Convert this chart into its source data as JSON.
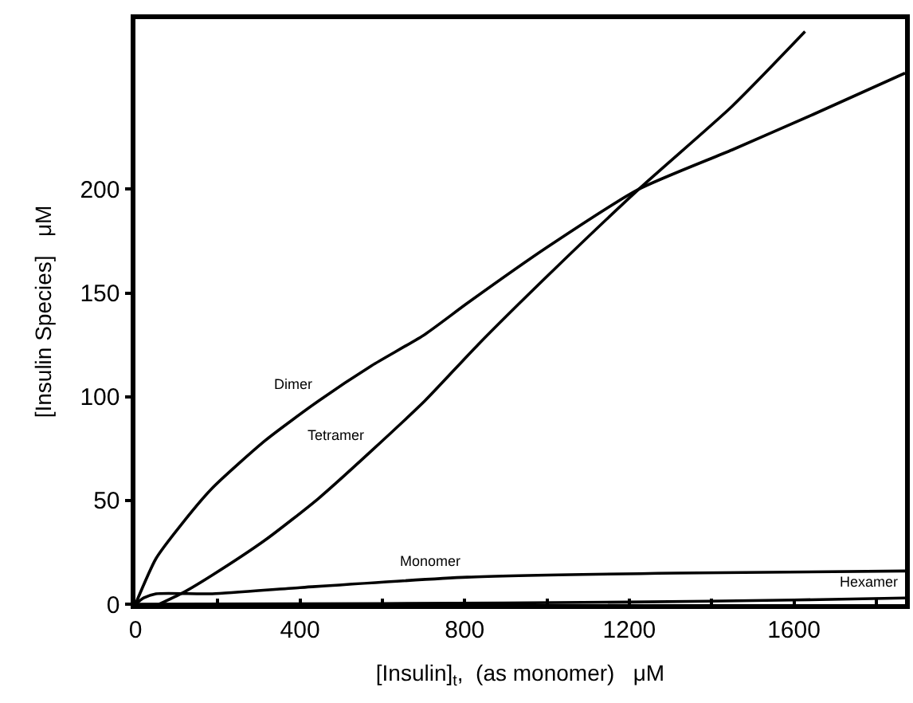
{
  "chart_data": {
    "type": "line",
    "xlabel": "[Insulin]$_{t}$,  (as monomer)   μM",
    "ylabel": "[Insulin Species]   μM",
    "xlim": [
      0,
      1870
    ],
    "ylim": [
      0,
      282
    ],
    "xticks": [
      0,
      {
        "value": 200,
        "label": null
      },
      400,
      {
        "value": 600,
        "label": null
      },
      800,
      {
        "value": 1000,
        "label": null
      },
      1200,
      {
        "value": 1400,
        "label": null
      },
      1600,
      {
        "value": 1800,
        "label": null
      }
    ],
    "yticks": [
      0,
      50,
      100,
      150,
      200
    ],
    "marker": "none",
    "line_style": "solid",
    "series": [
      {
        "color": "#000000",
        "x": [
          0,
          50,
          110,
          187,
          316,
          445,
          574,
          703,
          806,
          1000,
          1223,
          1450,
          1646,
          1870
        ],
        "values": [
          0,
          22,
          38,
          56,
          79,
          98,
          115,
          130,
          145,
          172,
          200,
          219,
          236,
          256
        ]
      },
      {
        "color": "#000000",
        "x": [
          58,
          120,
          187,
          316,
          445,
          574,
          703,
          832,
          1000,
          1223,
          1450,
          1627
        ],
        "values": [
          0,
          6,
          14,
          31,
          51,
          74,
          98,
          125,
          158,
          200,
          240,
          276
        ]
      },
      {
        "color": "#000000",
        "x": [
          0,
          20,
          50,
          187,
          400,
          806,
          1315,
          1870
        ],
        "values": [
          0,
          3,
          5,
          5,
          8,
          13,
          15,
          16
        ]
      },
      {
        "color": "#000000",
        "x": [
          0,
          600,
          1200,
          1600,
          1870
        ],
        "values": [
          0,
          0.3,
          1,
          2,
          3
        ]
      }
    ],
    "annotations": [
      {
        "text": "Dimer",
        "x": 445,
        "y": 98
      },
      {
        "text": "Tetramer",
        "x": 574,
        "y": 74
      },
      {
        "text": "Monomer",
        "x": 806,
        "y": 13
      },
      {
        "text": "Hexamer",
        "x": 1870,
        "y": 3
      }
    ]
  }
}
